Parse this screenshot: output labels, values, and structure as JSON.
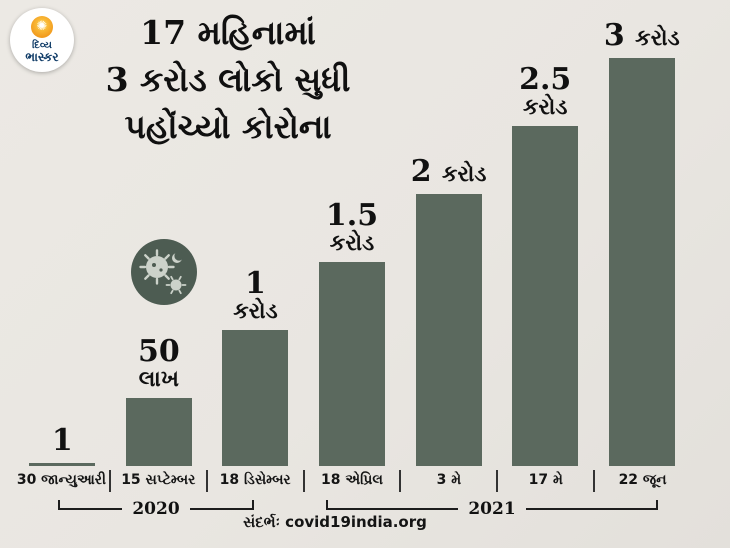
{
  "brand": {
    "name_line1": "દિવ્ય",
    "name_line2": "ભાસ્કર"
  },
  "title": {
    "line1": "17 મહિનામાં",
    "line2": "3 કરોડ લોકો સુધી",
    "line3": "પહોંચ્યો કોરોના"
  },
  "chart_data": {
    "type": "bar",
    "title": "17 મહિનામાં 3 કરોડ લોકો સુધી પહોંચ્યો કોરોના",
    "categories": [
      "30 જાન્યુઆરી",
      "15 સપ્ટેમ્બર",
      "18 ડિસેમ્બર",
      "18 એપ્રિલ",
      "3 મે",
      "17 મે",
      "22 જૂન"
    ],
    "values_crore": [
      0,
      0.5,
      1,
      1.5,
      2,
      2.5,
      3
    ],
    "value_labels": [
      [
        "1"
      ],
      [
        "50",
        "લાખ"
      ],
      [
        "1",
        "કરોડ"
      ],
      [
        "1.5 કરોડ"
      ],
      [
        "2 કરોડ"
      ],
      [
        "2.5",
        "કરોડ"
      ],
      [
        "3 કરોડ"
      ]
    ],
    "bar_color": "#5b695e",
    "ylim": [
      0,
      3
    ],
    "grid": false,
    "legend_position": "none",
    "year_groups": [
      {
        "label": "2020",
        "categories": [
          "30 જાન્યુઆરી",
          "15 સપ્ટેમ્બર",
          "18 ડિસેમ્બર"
        ]
      },
      {
        "label": "2021",
        "categories": [
          "18 એપ્રિલ",
          "3 મે",
          "17 મે",
          "22 જૂન"
        ]
      }
    ]
  },
  "source": "સંદર્ભઃ covid19india.org",
  "icons": {
    "sun_icon": "✺",
    "virus_icon": "virus"
  }
}
